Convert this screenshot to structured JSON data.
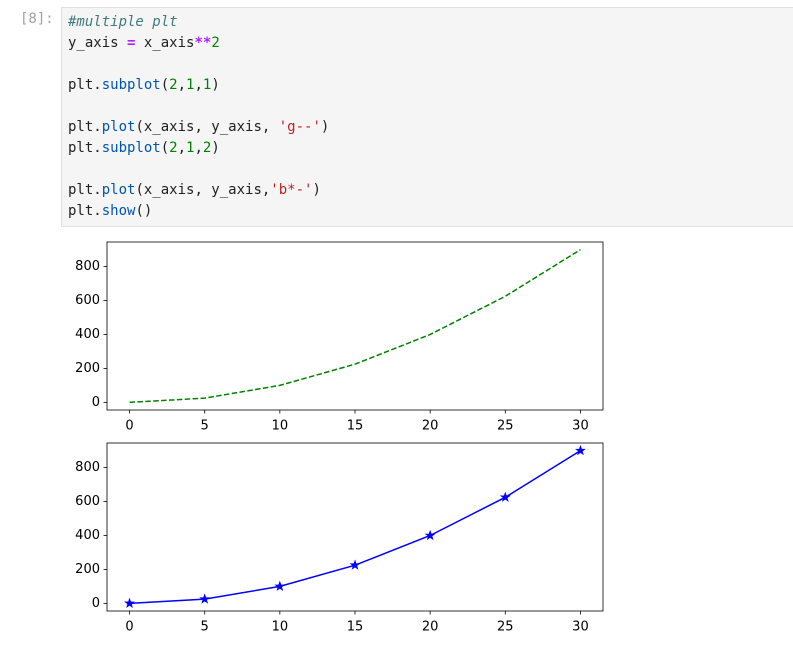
{
  "prompt": "[8]:",
  "code": {
    "lines": [
      [
        "#multiple plt"
      ],
      [
        "y_axis ",
        "=",
        " x_axis",
        "**",
        "2"
      ],
      [
        "plt.",
        "subplot",
        "(",
        "2",
        ",",
        "1",
        ",",
        "1",
        ")"
      ],
      [
        "plt.",
        "plot",
        "(x_axis, y_axis, ",
        "'g--'",
        ")"
      ],
      [
        "plt.",
        "subplot",
        "(",
        "2",
        ",",
        "1",
        ",",
        "2",
        ")"
      ],
      [
        "plt.",
        "plot",
        "(x_axis, y_axis,",
        "'b*-'",
        ")"
      ],
      [
        "plt.",
        "show",
        "()"
      ]
    ]
  },
  "chart_data": [
    {
      "type": "line",
      "x": [
        0,
        5,
        10,
        15,
        20,
        25,
        30
      ],
      "series": [
        {
          "color": "#008000",
          "linestyle": "dashed",
          "values": [
            0,
            25,
            100,
            225,
            400,
            625,
            900
          ]
        }
      ],
      "xlim": [
        -1.5,
        31.5
      ],
      "ylim": [
        -45,
        945
      ],
      "xticks": [
        0,
        5,
        10,
        15,
        20,
        25,
        30
      ],
      "yticks": [
        0,
        200,
        400,
        600,
        800
      ]
    },
    {
      "type": "line",
      "x": [
        0,
        5,
        10,
        15,
        20,
        25,
        30
      ],
      "series": [
        {
          "color": "#0000ff",
          "linestyle": "solid",
          "marker": "star",
          "values": [
            0,
            25,
            100,
            225,
            400,
            625,
            900
          ]
        }
      ],
      "xlim": [
        -1.5,
        31.5
      ],
      "ylim": [
        -45,
        945
      ],
      "xticks": [
        0,
        5,
        10,
        15,
        20,
        25,
        30
      ],
      "yticks": [
        0,
        200,
        400,
        600,
        800
      ]
    }
  ]
}
